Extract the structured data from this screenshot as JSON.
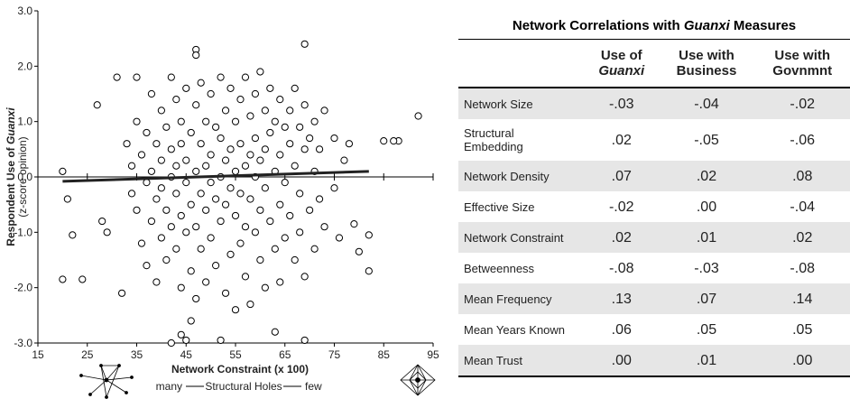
{
  "chart_data": {
    "type": "scatter",
    "ylabel_parts": [
      "Respondent Use of ",
      "Guanxi"
    ],
    "ylabel_sub": "(z-score opinion)",
    "xlabel": "Network Constraint (x 100)",
    "xlabel_sub": [
      "many",
      "Structural Holes",
      "few"
    ],
    "xlim": [
      15,
      95
    ],
    "xticks": [
      15,
      25,
      35,
      45,
      55,
      65,
      75,
      85,
      95
    ],
    "ylim": [
      -3,
      3
    ],
    "yticks": [
      {
        "value": -3,
        "label": "-3.0"
      },
      {
        "value": -2,
        "label": "-2.0"
      },
      {
        "value": -1,
        "label": "-1.0"
      },
      {
        "value": 0,
        "label": "0.0"
      },
      {
        "value": 1,
        "label": "1.0"
      },
      {
        "value": 2,
        "label": "2.0"
      },
      {
        "value": 3,
        "label": "3.0"
      }
    ],
    "marker_color": "#000000",
    "x": [
      33,
      34,
      34,
      35,
      35,
      36,
      36,
      37,
      37,
      37,
      38,
      38,
      38,
      39,
      39,
      39,
      40,
      40,
      40,
      40,
      41,
      41,
      41,
      42,
      42,
      42,
      42,
      43,
      43,
      43,
      43,
      44,
      44,
      44,
      44,
      45,
      45,
      45,
      45,
      46,
      46,
      46,
      47,
      47,
      47,
      47,
      48,
      48,
      48,
      48,
      49,
      49,
      49,
      49,
      50,
      50,
      50,
      50,
      51,
      51,
      51,
      52,
      52,
      52,
      52,
      53,
      53,
      53,
      53,
      54,
      54,
      54,
      54,
      55,
      55,
      55,
      55,
      56,
      56,
      56,
      56,
      57,
      57,
      57,
      57,
      58,
      58,
      58,
      58,
      59,
      59,
      59,
      59,
      60,
      60,
      60,
      60,
      61,
      61,
      61,
      61,
      62,
      62,
      62,
      63,
      63,
      63,
      64,
      64,
      64,
      64,
      65,
      65,
      65,
      66,
      66,
      66,
      67,
      67,
      67,
      68,
      68,
      68,
      69,
      69,
      69,
      70,
      70,
      71,
      71,
      71,
      72,
      72,
      73,
      73,
      75,
      75,
      76,
      77,
      78,
      20,
      21,
      20,
      22,
      24,
      27,
      28,
      29,
      31,
      32,
      35,
      42,
      44,
      45,
      46,
      47,
      47,
      52,
      63,
      69,
      69,
      88,
      92,
      82,
      82,
      80,
      79,
      85,
      87
    ],
    "values": [
      0.6,
      0.2,
      -0.3,
      -0.6,
      1.0,
      0.4,
      -1.2,
      0.8,
      -0.1,
      -1.6,
      1.5,
      0.1,
      -0.8,
      0.6,
      -0.4,
      -1.9,
      1.2,
      0.3,
      -0.2,
      -1.1,
      0.9,
      -0.6,
      -1.5,
      1.8,
      0.5,
      0.0,
      -0.9,
      1.4,
      0.2,
      -0.3,
      -1.3,
      1.0,
      0.6,
      -0.7,
      -2.0,
      1.6,
      0.3,
      -0.1,
      -1.0,
      0.8,
      -0.5,
      -1.7,
      1.3,
      0.1,
      -0.9,
      -2.2,
      1.7,
      0.6,
      -0.3,
      -1.3,
      1.0,
      0.2,
      -0.6,
      -1.9,
      1.5,
      0.4,
      -0.1,
      -1.1,
      0.9,
      -0.4,
      -1.6,
      1.8,
      0.7,
      0.0,
      -0.8,
      1.2,
      0.3,
      -0.5,
      -2.1,
      1.6,
      0.5,
      -0.2,
      -1.4,
      1.0,
      0.1,
      -0.7,
      -2.4,
      1.4,
      0.6,
      -0.3,
      -1.2,
      1.8,
      0.2,
      -0.9,
      -1.8,
      1.1,
      0.4,
      -0.4,
      -2.3,
      1.5,
      0.7,
      0.0,
      -1.0,
      1.9,
      0.3,
      -0.6,
      -1.5,
      1.2,
      0.5,
      -0.2,
      -2.0,
      1.6,
      0.8,
      -0.8,
      1.0,
      0.1,
      -1.3,
      1.4,
      0.4,
      -0.5,
      -1.9,
      0.9,
      -0.1,
      -1.1,
      1.2,
      0.6,
      -0.7,
      1.6,
      0.2,
      -1.5,
      0.9,
      -0.3,
      -1.0,
      1.3,
      0.5,
      -1.8,
      0.7,
      -0.6,
      1.0,
      0.1,
      -1.3,
      0.5,
      -0.4,
      1.2,
      -0.9,
      0.7,
      -0.2,
      -1.1,
      0.3,
      0.6,
      0.1,
      -0.4,
      -1.85,
      -1.05,
      -1.85,
      1.3,
      -0.8,
      -1.0,
      1.8,
      -2.1,
      1.8,
      -3.0,
      -2.85,
      -2.95,
      -2.6,
      2.3,
      2.2,
      -2.95,
      -2.8,
      2.4,
      -2.95,
      0.65,
      1.1,
      -1.7,
      -1.05,
      -1.35,
      -0.85,
      0.65,
      0.65
    ],
    "trend": {
      "x": [
        20,
        82
      ],
      "values": [
        -0.08,
        0.1
      ],
      "color": "#222222"
    }
  },
  "table": {
    "title_parts": [
      "Network Correlations with ",
      "Guanxi",
      " Measures"
    ],
    "columns": [
      [
        "Use of",
        "Guanxi"
      ],
      [
        "Use with",
        "Business"
      ],
      [
        "Use with",
        "Govnmnt"
      ]
    ],
    "rows": [
      {
        "label": "Network Size",
        "values": [
          "-.03",
          "-.04",
          "-.02"
        ]
      },
      {
        "label": [
          "Structural",
          "Embedding"
        ],
        "values": [
          ".02",
          "-.05",
          "-.06"
        ]
      },
      {
        "label": "Network Density",
        "values": [
          ".07",
          ".02",
          ".08"
        ]
      },
      {
        "label": "Effective Size",
        "values": [
          "-.02",
          ".00",
          "-.04"
        ]
      },
      {
        "label": "Network Constraint",
        "values": [
          ".02",
          ".01",
          ".02"
        ]
      },
      {
        "label": "Betweenness",
        "values": [
          "-.08",
          "-.03",
          "-.08"
        ]
      },
      {
        "label": "Mean Frequency",
        "values": [
          ".13",
          ".07",
          ".14"
        ]
      },
      {
        "label": "Mean Years Known",
        "values": [
          ".06",
          ".05",
          ".05"
        ]
      },
      {
        "label": "Mean Trust",
        "values": [
          ".00",
          ".01",
          ".00"
        ]
      }
    ]
  }
}
